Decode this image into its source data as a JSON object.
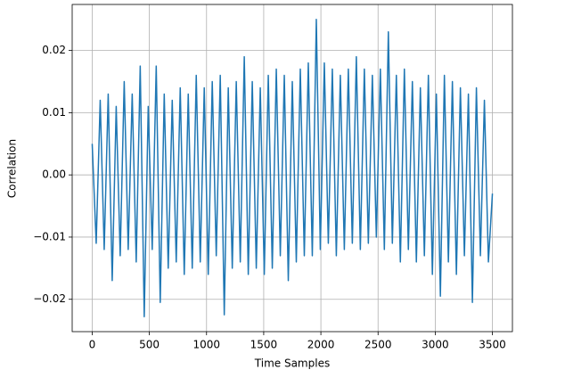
{
  "chart_data": {
    "type": "line",
    "xlabel": "Time Samples",
    "ylabel": "Correlation",
    "x": [
      0,
      35,
      70,
      105,
      140,
      175,
      210,
      245,
      280,
      315,
      350,
      385,
      420,
      455,
      490,
      525,
      560,
      595,
      630,
      665,
      700,
      735,
      770,
      805,
      840,
      875,
      910,
      945,
      980,
      1015,
      1050,
      1085,
      1120,
      1155,
      1190,
      1225,
      1260,
      1295,
      1330,
      1365,
      1400,
      1435,
      1470,
      1505,
      1540,
      1575,
      1610,
      1645,
      1680,
      1715,
      1750,
      1785,
      1820,
      1855,
      1890,
      1925,
      1960,
      1995,
      2030,
      2065,
      2100,
      2135,
      2170,
      2205,
      2240,
      2275,
      2310,
      2345,
      2380,
      2415,
      2450,
      2485,
      2520,
      2555,
      2590,
      2625,
      2660,
      2695,
      2730,
      2765,
      2800,
      2835,
      2870,
      2905,
      2940,
      2975,
      3010,
      3045,
      3080,
      3115,
      3150,
      3185,
      3220,
      3255,
      3290,
      3325,
      3360,
      3395,
      3430,
      3465,
      3500
    ],
    "series": [
      {
        "color": "#1f77b4",
        "values": [
          0.005,
          -0.011,
          0.012,
          -0.012,
          0.013,
          -0.017,
          0.011,
          -0.013,
          0.015,
          -0.012,
          0.013,
          -0.014,
          0.0175,
          -0.0228,
          0.011,
          -0.012,
          0.0175,
          -0.0205,
          0.013,
          -0.015,
          0.012,
          -0.014,
          0.014,
          -0.016,
          0.013,
          -0.015,
          0.016,
          -0.014,
          0.014,
          -0.016,
          0.015,
          -0.013,
          0.016,
          -0.0225,
          0.014,
          -0.015,
          0.015,
          -0.014,
          0.019,
          -0.016,
          0.015,
          -0.015,
          0.014,
          -0.016,
          0.016,
          -0.015,
          0.017,
          -0.013,
          0.016,
          -0.017,
          0.015,
          -0.014,
          0.017,
          -0.013,
          0.018,
          -0.013,
          0.025,
          -0.012,
          0.018,
          -0.011,
          0.017,
          -0.013,
          0.016,
          -0.012,
          0.017,
          -0.011,
          0.019,
          -0.012,
          0.017,
          -0.011,
          0.016,
          -0.01,
          0.017,
          -0.012,
          0.023,
          -0.011,
          0.016,
          -0.014,
          0.017,
          -0.012,
          0.015,
          -0.014,
          0.014,
          -0.013,
          0.016,
          -0.016,
          0.013,
          -0.0195,
          0.016,
          -0.014,
          0.015,
          -0.016,
          0.014,
          -0.013,
          0.013,
          -0.0205,
          0.014,
          -0.013,
          0.012,
          -0.014,
          -0.003
        ]
      }
    ],
    "xlim": [
      -175,
      3675
    ],
    "xticks": [
      0,
      500,
      1000,
      1500,
      2000,
      2500,
      3000,
      3500
    ],
    "ylim": [
      -0.0252,
      0.0274
    ],
    "yticks": [
      {
        "value": -0.02,
        "label": "−0.02"
      },
      {
        "value": -0.01,
        "label": "−0.01"
      },
      {
        "value": 0,
        "label": "0.00"
      },
      0.01,
      0.02
    ],
    "grid": true
  }
}
